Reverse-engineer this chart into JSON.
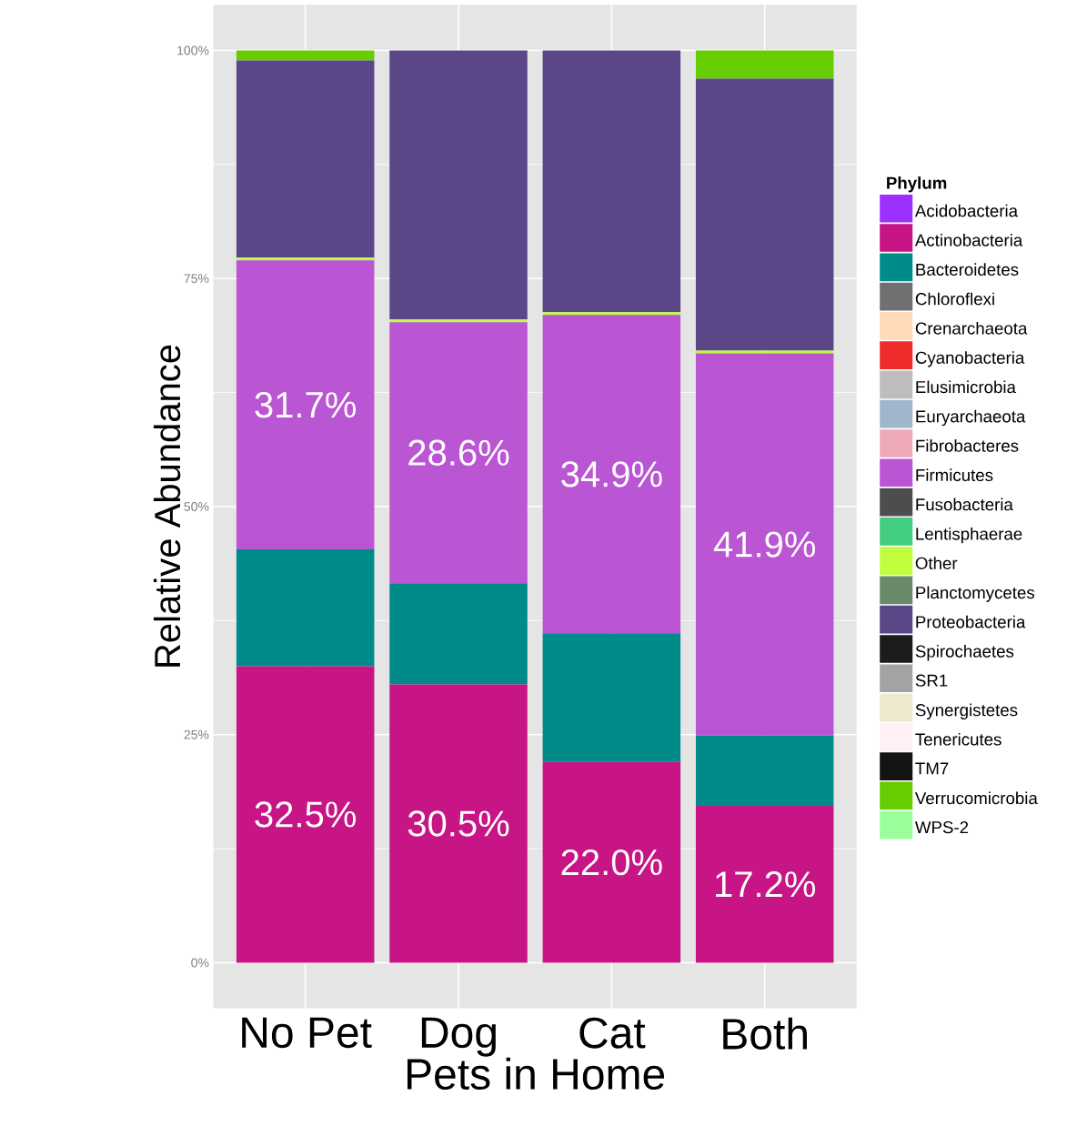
{
  "chart_data": {
    "type": "bar",
    "stacked": true,
    "xlabel": "Pets in Home",
    "ylabel": "Relative Abundance",
    "legend_title": "Phylum",
    "legend": "right",
    "grid": true,
    "categories": [
      "No Pet",
      "Dog",
      "Cat",
      "Both"
    ],
    "ylim": [
      -5,
      105
    ],
    "yticks": [
      {
        "value": 0,
        "label": "0%"
      },
      {
        "value": 25,
        "label": "25%"
      },
      {
        "value": 50,
        "label": "50%"
      },
      {
        "value": 75,
        "label": "75%"
      },
      {
        "value": 100,
        "label": "100%"
      }
    ],
    "series": [
      {
        "name": "Acidobacteria",
        "color": "#9b30ff",
        "values": [
          0,
          0,
          0,
          0
        ]
      },
      {
        "name": "Actinobacteria",
        "color": "#c71585",
        "values": [
          32.5,
          30.5,
          22.0,
          17.2
        ],
        "value_labels": [
          "32.5%",
          "30.5%",
          "22.0%",
          "17.2%"
        ]
      },
      {
        "name": "Bacteroidetes",
        "color": "#008b8b",
        "values": [
          12.8,
          11.1,
          14.1,
          7.7
        ]
      },
      {
        "name": "Chloroflexi",
        "color": "#707070",
        "values": [
          0,
          0,
          0,
          0
        ]
      },
      {
        "name": "Crenarchaeota",
        "color": "#ffdab9",
        "values": [
          0,
          0,
          0,
          0
        ]
      },
      {
        "name": "Cyanobacteria",
        "color": "#ee2c2c",
        "values": [
          0,
          0,
          0,
          0
        ]
      },
      {
        "name": "Elusimicrobia",
        "color": "#bdbdbd",
        "values": [
          0,
          0,
          0,
          0
        ]
      },
      {
        "name": "Euryarchaeota",
        "color": "#9fb6cd",
        "values": [
          0,
          0,
          0,
          0
        ]
      },
      {
        "name": "Fibrobacteres",
        "color": "#eea9b8",
        "values": [
          0,
          0,
          0,
          0
        ]
      },
      {
        "name": "Firmicutes",
        "color": "#ba55d3",
        "values": [
          31.7,
          28.6,
          34.9,
          41.9
        ],
        "value_labels": [
          "31.7%",
          "28.6%",
          "34.9%",
          "41.9%"
        ]
      },
      {
        "name": "Fusobacteria",
        "color": "#4d4d4d",
        "values": [
          0,
          0,
          0,
          0
        ]
      },
      {
        "name": "Lentisphaerae",
        "color": "#43cd80",
        "values": [
          0,
          0,
          0,
          0
        ]
      },
      {
        "name": "Other",
        "color": "#c0ff3e",
        "values": [
          0.3,
          0.3,
          0.3,
          0.3
        ]
      },
      {
        "name": "Planctomycetes",
        "color": "#698b69",
        "values": [
          0,
          0,
          0,
          0
        ]
      },
      {
        "name": "Proteobacteria",
        "color": "#5b4788",
        "values": [
          21.6,
          29.5,
          28.7,
          29.8
        ]
      },
      {
        "name": "Spirochaetes",
        "color": "#1c1c1c",
        "values": [
          0,
          0,
          0,
          0
        ]
      },
      {
        "name": "SR1",
        "color": "#a3a3a3",
        "values": [
          0,
          0,
          0,
          0
        ]
      },
      {
        "name": "Synergistetes",
        "color": "#eee8cd",
        "values": [
          0,
          0,
          0,
          0
        ]
      },
      {
        "name": "Tenericutes",
        "color": "#fff0f5",
        "values": [
          0,
          0,
          0,
          0
        ]
      },
      {
        "name": "TM7",
        "color": "#141414",
        "values": [
          0,
          0,
          0,
          0
        ]
      },
      {
        "name": "Verrucomicrobia",
        "color": "#66cd00",
        "values": [
          1.1,
          0,
          0,
          3.1
        ]
      },
      {
        "name": "WPS-2",
        "color": "#9aff9a",
        "values": [
          0,
          0,
          0,
          0
        ]
      }
    ]
  }
}
